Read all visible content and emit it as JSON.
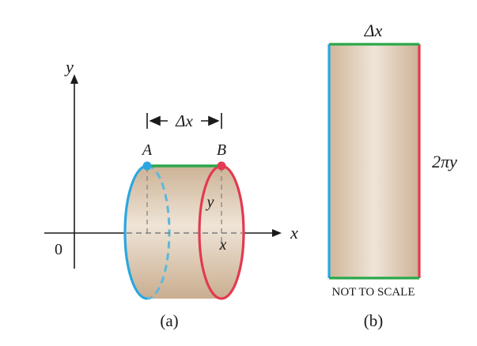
{
  "panel_a": {
    "axis_y_label": "y",
    "axis_x_label": "x",
    "origin_label": "0",
    "delta_label": "Δx",
    "point_a_label": "A",
    "point_b_label": "B",
    "radius_label": "y",
    "x_position_label": "x",
    "caption": "(a)"
  },
  "panel_b": {
    "width_label": "Δx",
    "height_label": "2πy",
    "note": "NOT TO SCALE",
    "caption": "(b)"
  },
  "colors": {
    "blue": "#2aa7e0",
    "red": "#e23a50",
    "green": "#2aa84a",
    "tan_dark": "#d2b99e",
    "tan_light": "#ede1d2",
    "black": "#1a1a1a",
    "dash": "#8a8a8a"
  }
}
